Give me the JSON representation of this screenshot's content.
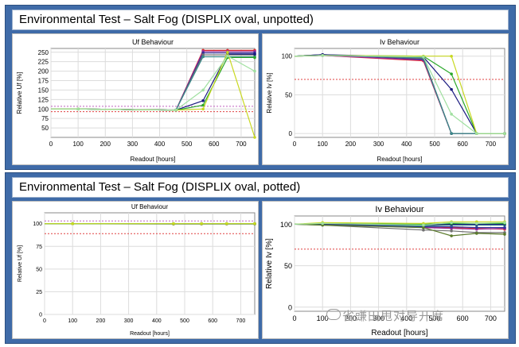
{
  "panels": [
    {
      "title": "Environmental Test – Salt Fog (DISPLIX oval, unpotted)"
    },
    {
      "title": "Environmental Test – Salt Fog (DISPLIX oval, potted)"
    }
  ],
  "watermark": "省豏田甩对导开席",
  "chart_data": [
    {
      "type": "line",
      "title": "Uf Behaviour",
      "xlabel": "Readout [hours]",
      "ylabel": "Relative Uf [%]",
      "xlim": [
        0,
        750
      ],
      "ylim": [
        25,
        260
      ],
      "xticks": [
        0,
        100,
        200,
        300,
        400,
        500,
        600,
        700
      ],
      "yticks": [
        50,
        75,
        100,
        125,
        150,
        175,
        200,
        225,
        250
      ],
      "grid": true,
      "reference_lines": [
        {
          "y": 107,
          "color": "#c060c0"
        },
        {
          "y": 93,
          "color": "#e04040"
        }
      ],
      "series": [
        {
          "color": "#e03030",
          "x": [
            0,
            100,
            460,
            560,
            650,
            750
          ],
          "y": [
            100,
            100,
            97,
            255,
            255,
            255
          ]
        },
        {
          "color": "#9a2a9a",
          "x": [
            0,
            100,
            460,
            560,
            650,
            750
          ],
          "y": [
            100,
            100,
            97,
            252,
            252,
            252
          ]
        },
        {
          "color": "#30309a",
          "x": [
            0,
            100,
            460,
            560,
            650,
            750
          ],
          "y": [
            100,
            100,
            97,
            248,
            248,
            248
          ]
        },
        {
          "color": "#707070",
          "x": [
            0,
            100,
            460,
            560,
            650,
            750
          ],
          "y": [
            100,
            100,
            97,
            243,
            243,
            243
          ]
        },
        {
          "color": "#3a8a8a",
          "x": [
            0,
            100,
            460,
            560,
            650,
            750
          ],
          "y": [
            100,
            100,
            97,
            238,
            238,
            238
          ]
        },
        {
          "color": "#1a1a80",
          "x": [
            0,
            100,
            460,
            560,
            650,
            750
          ],
          "y": [
            100,
            100,
            97,
            122,
            245,
            245
          ]
        },
        {
          "color": "#2aa82a",
          "x": [
            0,
            100,
            460,
            560,
            650,
            750
          ],
          "y": [
            100,
            100,
            97,
            110,
            236,
            236
          ]
        },
        {
          "color": "#c8d820",
          "x": [
            0,
            100,
            460,
            560,
            650,
            750
          ],
          "y": [
            100,
            100,
            97,
            100,
            250,
            25
          ]
        },
        {
          "color": "#a0e0a0",
          "x": [
            0,
            100,
            460,
            560,
            650,
            750
          ],
          "y": [
            100,
            100,
            97,
            150,
            240,
            200
          ]
        }
      ]
    },
    {
      "type": "line",
      "title": "Iv Behaviour",
      "xlabel": "Readout [hours]",
      "ylabel": "Relative Iv [%]",
      "xlim": [
        0,
        750
      ],
      "ylim": [
        -5,
        110
      ],
      "xticks": [
        0,
        100,
        200,
        300,
        400,
        500,
        600,
        700
      ],
      "yticks": [
        0,
        50,
        100
      ],
      "grid": true,
      "reference_lines": [
        {
          "y": 70,
          "color": "#e04040"
        }
      ],
      "series": [
        {
          "color": "#e03030",
          "x": [
            0,
            100,
            460,
            560,
            650,
            750
          ],
          "y": [
            100,
            101,
            94,
            0,
            0,
            0
          ]
        },
        {
          "color": "#9a2a9a",
          "x": [
            0,
            100,
            460,
            560,
            650,
            750
          ],
          "y": [
            100,
            101,
            95,
            0,
            0,
            0
          ]
        },
        {
          "color": "#30309a",
          "x": [
            0,
            100,
            460,
            560,
            650,
            750
          ],
          "y": [
            100,
            102,
            96,
            0,
            0,
            0
          ]
        },
        {
          "color": "#707070",
          "x": [
            0,
            100,
            460,
            560,
            650,
            750
          ],
          "y": [
            100,
            102,
            97,
            0,
            0,
            0
          ]
        },
        {
          "color": "#3a8a8a",
          "x": [
            0,
            100,
            460,
            560,
            650,
            750
          ],
          "y": [
            100,
            101,
            98,
            0,
            0,
            0
          ]
        },
        {
          "color": "#1a1a80",
          "x": [
            0,
            100,
            460,
            560,
            650,
            750
          ],
          "y": [
            100,
            102,
            99,
            57,
            0,
            0
          ]
        },
        {
          "color": "#2aa82a",
          "x": [
            0,
            100,
            460,
            560,
            650,
            750
          ],
          "y": [
            100,
            101,
            100,
            77,
            0,
            0
          ]
        },
        {
          "color": "#c8d820",
          "x": [
            0,
            100,
            460,
            560,
            650,
            750
          ],
          "y": [
            100,
            101,
            100,
            100,
            0,
            0
          ]
        },
        {
          "color": "#a0e0a0",
          "x": [
            0,
            100,
            460,
            560,
            650,
            750
          ],
          "y": [
            100,
            101,
            99,
            25,
            0,
            0
          ]
        }
      ]
    },
    {
      "type": "line",
      "title": "Uf Behaviour",
      "xlabel": "Readout [hours]",
      "ylabel": "Relative Uf [%]",
      "xlim": [
        0,
        750
      ],
      "ylim": [
        0,
        112
      ],
      "xticks": [
        0,
        100,
        200,
        300,
        400,
        500,
        600,
        700
      ],
      "yticks": [
        0,
        25,
        50,
        75,
        100
      ],
      "grid": true,
      "reference_lines": [
        {
          "y": 103,
          "color": "#c060c0"
        },
        {
          "y": 89,
          "color": "#e04040"
        }
      ],
      "series": [
        {
          "color": "#e03030",
          "x": [
            0,
            100,
            460,
            560,
            650,
            750
          ],
          "y": [
            100,
            100,
            100,
            100,
            100,
            100
          ]
        },
        {
          "color": "#30309a",
          "x": [
            0,
            100,
            460,
            560,
            650,
            750
          ],
          "y": [
            100,
            100,
            99.8,
            99.8,
            99.8,
            99.8
          ]
        },
        {
          "color": "#707070",
          "x": [
            0,
            100,
            460,
            560,
            650,
            750
          ],
          "y": [
            100,
            100,
            99.6,
            99.7,
            99.7,
            99.7
          ]
        },
        {
          "color": "#3a8a8a",
          "x": [
            0,
            100,
            460,
            560,
            650,
            750
          ],
          "y": [
            100,
            100,
            100,
            100,
            100,
            100
          ]
        },
        {
          "color": "#2aa82a",
          "x": [
            0,
            100,
            460,
            560,
            650,
            750
          ],
          "y": [
            100,
            100,
            100,
            100,
            100,
            100
          ]
        },
        {
          "color": "#c8d820",
          "x": [
            0,
            100,
            460,
            560,
            650,
            750
          ],
          "y": [
            100,
            100,
            100,
            100,
            100,
            100
          ]
        }
      ]
    },
    {
      "type": "line",
      "title": "Iv Behaviour",
      "xlabel": "Readout [hours]",
      "ylabel": "Relative Iv [%]",
      "xlim": [
        0,
        750
      ],
      "ylim": [
        -5,
        110
      ],
      "xticks": [
        0,
        100,
        200,
        300,
        400,
        500,
        600,
        700
      ],
      "yticks": [
        0,
        50,
        100
      ],
      "grid": true,
      "reference_lines": [
        {
          "y": 70,
          "color": "#e04040"
        }
      ],
      "series": [
        {
          "color": "#e03030",
          "x": [
            0,
            100,
            460,
            560,
            650,
            750
          ],
          "y": [
            100,
            101,
            97,
            96,
            95,
            94
          ]
        },
        {
          "color": "#9a2a9a",
          "x": [
            0,
            100,
            460,
            560,
            650,
            750
          ],
          "y": [
            100,
            100,
            96,
            95,
            94,
            95
          ]
        },
        {
          "color": "#30309a",
          "x": [
            0,
            100,
            460,
            560,
            650,
            750
          ],
          "y": [
            100,
            100,
            97,
            97,
            96,
            96
          ]
        },
        {
          "color": "#707070",
          "x": [
            0,
            100,
            460,
            560,
            650,
            750
          ],
          "y": [
            100,
            99,
            93,
            92,
            90,
            90
          ]
        },
        {
          "color": "#3a8a8a",
          "x": [
            0,
            100,
            460,
            560,
            650,
            750
          ],
          "y": [
            100,
            100,
            98,
            99,
            99,
            99
          ]
        },
        {
          "color": "#1a1a80",
          "x": [
            0,
            100,
            460,
            560,
            650,
            750
          ],
          "y": [
            100,
            100,
            99,
            100,
            100,
            100
          ]
        },
        {
          "color": "#2aa82a",
          "x": [
            0,
            100,
            460,
            560,
            650,
            750
          ],
          "y": [
            100,
            101,
            100,
            101,
            101,
            101
          ]
        },
        {
          "color": "#c8d820",
          "x": [
            0,
            100,
            460,
            560,
            650,
            750
          ],
          "y": [
            100,
            102,
            101,
            103,
            103,
            103
          ]
        },
        {
          "color": "#5a7a2a",
          "x": [
            0,
            100,
            460,
            560,
            650,
            750
          ],
          "y": [
            100,
            99,
            96,
            86,
            89,
            88
          ]
        },
        {
          "color": "#a0e0a0",
          "x": [
            0,
            100,
            460,
            560,
            650,
            750
          ],
          "y": [
            100,
            101,
            99,
            102,
            101,
            102
          ]
        }
      ]
    }
  ]
}
